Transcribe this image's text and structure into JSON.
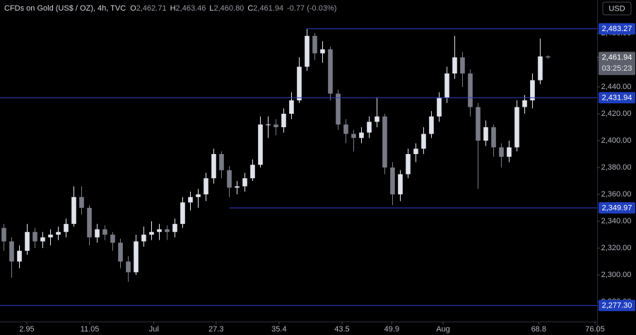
{
  "header": {
    "title": "CFDs on Gold (US$ / OZ), 4h, TVC",
    "ohlc": [
      {
        "key": "O",
        "value": "2,462.71"
      },
      {
        "key": "H",
        "value": "2,463.46"
      },
      {
        "key": "L",
        "value": "2,460.80"
      },
      {
        "key": "C",
        "value": "2,461.94"
      }
    ],
    "change": "-0.77 (-0.03%)",
    "currency": "USD"
  },
  "chart_data": {
    "type": "candlestick",
    "up_color": "#e0e3eb",
    "down_color": "#787b86",
    "level_color": "#2f3fd0",
    "xlim": [
      -0.5,
      76.32
    ],
    "ylim": [
      2265.3,
      2504.7
    ],
    "xticks": [
      2.95,
      11.05,
      {
        "value": 19.3,
        "label": "Jul"
      },
      27.3,
      35.4,
      43.5,
      49.9,
      {
        "value": 56.5,
        "label": "Aug"
      },
      68.8,
      76.05
    ],
    "yticks": [
      {
        "value": 2280,
        "label": "2,280.00"
      },
      {
        "value": 2300,
        "label": "2,300.00"
      },
      {
        "value": 2320,
        "label": "2,320.00"
      },
      {
        "value": 2340,
        "label": "2,340.00"
      },
      {
        "value": 2360,
        "label": "2,360.00"
      },
      {
        "value": 2380,
        "label": "2,380.00"
      },
      {
        "value": 2400,
        "label": "2,400.00"
      },
      {
        "value": 2420,
        "label": "2,420.00"
      },
      {
        "value": 2440,
        "label": "2,440.00"
      },
      {
        "value": 2460,
        "label": "2,460.00"
      },
      {
        "value": 2480,
        "label": "2,480.00"
      }
    ],
    "open": [
      2335,
      2325,
      2310,
      2318,
      2332,
      2325,
      2328,
      2330,
      2332,
      2338,
      2358,
      2350,
      2328,
      2334,
      2330,
      2324,
      2310,
      2302,
      2325,
      2330,
      2332,
      2334,
      2332,
      2338,
      2354,
      2358,
      2360,
      2372,
      2390,
      2378,
      2365,
      2366,
      2372,
      2382,
      2412,
      2412,
      2410,
      2420,
      2430,
      2455,
      2478,
      2465,
      2468,
      2435,
      2412,
      2405,
      2402,
      2406,
      2414,
      2418,
      2380,
      2360,
      2375,
      2390,
      2394,
      2405,
      2418,
      2432,
      2450,
      2462,
      2450,
      2425,
      2400,
      2410,
      2395,
      2388,
      2395,
      2425,
      2430,
      2445,
      2462.71
    ],
    "high": [
      2338,
      2328,
      2322,
      2338,
      2335,
      2332,
      2334,
      2336,
      2342,
      2366,
      2366,
      2352,
      2338,
      2337,
      2332,
      2327,
      2314,
      2330,
      2336,
      2340,
      2338,
      2337,
      2342,
      2358,
      2362,
      2364,
      2376,
      2394,
      2392,
      2381,
      2370,
      2376,
      2386,
      2418,
      2418,
      2416,
      2424,
      2436,
      2462,
      2483.27,
      2480,
      2474,
      2470,
      2438,
      2416,
      2408,
      2410,
      2418,
      2432,
      2420,
      2384,
      2378,
      2394,
      2398,
      2410,
      2422,
      2436,
      2455,
      2478,
      2466,
      2453,
      2428,
      2415,
      2412,
      2398,
      2400,
      2430,
      2434,
      2450,
      2476,
      2463.46
    ],
    "low": [
      2318,
      2298,
      2305,
      2315,
      2320,
      2320,
      2322,
      2326,
      2328,
      2336,
      2345,
      2322,
      2324,
      2326,
      2318,
      2305,
      2295,
      2300,
      2321,
      2326,
      2326,
      2326,
      2328,
      2335,
      2348,
      2350,
      2355,
      2368,
      2372,
      2358,
      2360,
      2362,
      2370,
      2380,
      2402,
      2404,
      2406,
      2416,
      2428,
      2452,
      2460,
      2458,
      2430,
      2408,
      2398,
      2392,
      2398,
      2402,
      2410,
      2375,
      2352,
      2355,
      2372,
      2384,
      2390,
      2402,
      2414,
      2428,
      2446,
      2440,
      2418,
      2364,
      2396,
      2388,
      2380,
      2384,
      2392,
      2420,
      2424,
      2442,
      2460.8
    ],
    "close": [
      2325,
      2310,
      2318,
      2332,
      2325,
      2328,
      2330,
      2332,
      2338,
      2358,
      2350,
      2328,
      2334,
      2330,
      2324,
      2310,
      2302,
      2325,
      2330,
      2332,
      2334,
      2332,
      2338,
      2354,
      2358,
      2360,
      2372,
      2390,
      2378,
      2365,
      2366,
      2372,
      2382,
      2412,
      2412,
      2410,
      2420,
      2430,
      2455,
      2478,
      2465,
      2468,
      2435,
      2412,
      2405,
      2402,
      2406,
      2414,
      2418,
      2380,
      2360,
      2375,
      2390,
      2394,
      2405,
      2418,
      2432,
      2450,
      2462,
      2450,
      2425,
      2400,
      2410,
      2395,
      2388,
      2395,
      2425,
      2430,
      2445,
      2462.71,
      2461.94
    ],
    "levels": [
      {
        "value": 2483.27,
        "label": "2,483.27",
        "from": 39
      },
      {
        "value": 2431.94,
        "label": "2,431.94"
      },
      {
        "value": 2349.97,
        "label": "2,349.97",
        "from": 29
      },
      {
        "value": 2277.3,
        "label": "2,277.30"
      }
    ],
    "last_price": {
      "value": 2461.94,
      "label": "2,461.94",
      "countdown": "03:25:23"
    }
  }
}
